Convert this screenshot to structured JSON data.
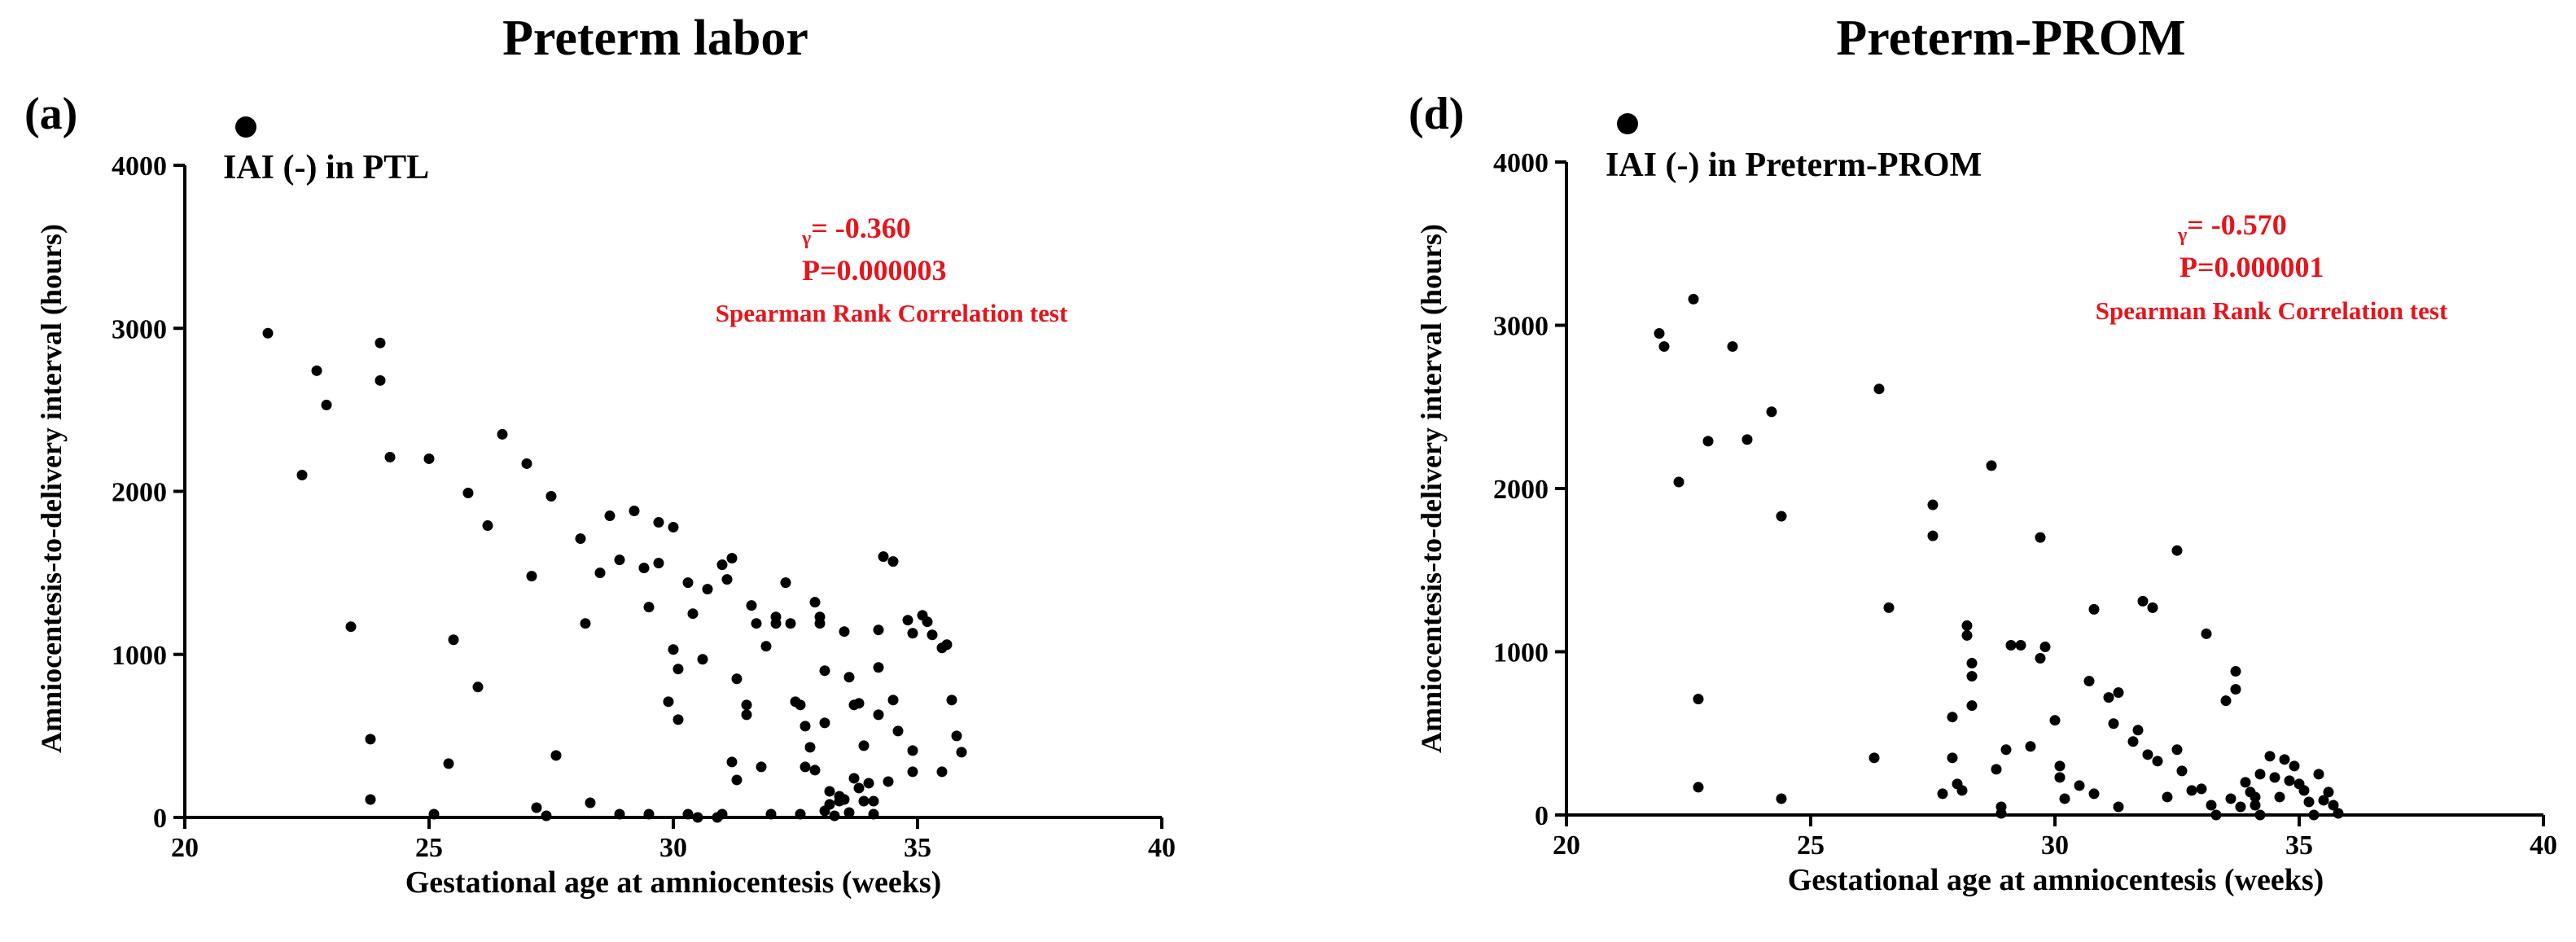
{
  "chart_data": [
    {
      "type": "scatter",
      "title": "Preterm labor",
      "panel_label": "(a)",
      "legend": {
        "label": "IAI (-) in PTL",
        "placement": "top-left"
      },
      "annotation": {
        "r_prefix": "γ",
        "r_text": "= -0.360",
        "p_text": "P=0.000003",
        "test_text": "Spearman Rank Correlation test",
        "color": "#e8141b"
      },
      "xlabel": "Gestational age at amniocentesis (weeks)",
      "ylabel": "Amniocentesis-to-delivery interval (hours)",
      "xlim": [
        20,
        40
      ],
      "ylim": [
        0,
        4000
      ],
      "xticks": [
        20,
        25,
        30,
        35,
        40
      ],
      "yticks": [
        0,
        1000,
        2000,
        3000,
        4000
      ],
      "points": [
        [
          21.7,
          2970
        ],
        [
          22.4,
          2100
        ],
        [
          22.7,
          2740
        ],
        [
          22.9,
          2530
        ],
        [
          23.4,
          1170
        ],
        [
          23.8,
          480
        ],
        [
          23.8,
          110
        ],
        [
          24.0,
          2910
        ],
        [
          24.0,
          2680
        ],
        [
          24.2,
          2210
        ],
        [
          25.0,
          2200
        ],
        [
          25.1,
          20
        ],
        [
          25.4,
          330
        ],
        [
          25.5,
          1090
        ],
        [
          25.8,
          1990
        ],
        [
          26.0,
          800
        ],
        [
          26.2,
          1790
        ],
        [
          26.5,
          2350
        ],
        [
          27.0,
          2170
        ],
        [
          27.1,
          1480
        ],
        [
          27.2,
          60
        ],
        [
          27.4,
          10
        ],
        [
          27.5,
          1970
        ],
        [
          27.6,
          380
        ],
        [
          28.1,
          1710
        ],
        [
          28.2,
          1190
        ],
        [
          28.3,
          90
        ],
        [
          28.5,
          1500
        ],
        [
          28.7,
          1850
        ],
        [
          28.9,
          1580
        ],
        [
          28.9,
          20
        ],
        [
          29.2,
          1880
        ],
        [
          29.4,
          1530
        ],
        [
          29.5,
          1290
        ],
        [
          29.5,
          20
        ],
        [
          29.7,
          1810
        ],
        [
          29.7,
          1560
        ],
        [
          29.9,
          710
        ],
        [
          30.0,
          1780
        ],
        [
          30.0,
          1030
        ],
        [
          30.1,
          910
        ],
        [
          30.1,
          600
        ],
        [
          30.3,
          1440
        ],
        [
          30.4,
          1250
        ],
        [
          30.6,
          970
        ],
        [
          30.7,
          1400
        ],
        [
          30.9,
          0
        ],
        [
          30.3,
          20
        ],
        [
          30.5,
          0
        ],
        [
          31.0,
          1550
        ],
        [
          31.1,
          1460
        ],
        [
          31.2,
          1590
        ],
        [
          31.3,
          850
        ],
        [
          31.5,
          690
        ],
        [
          31.5,
          630
        ],
        [
          31.3,
          230
        ],
        [
          31.2,
          340
        ],
        [
          31.0,
          20
        ],
        [
          31.6,
          1300
        ],
        [
          31.7,
          1190
        ],
        [
          31.9,
          1050
        ],
        [
          32.0,
          20
        ],
        [
          31.8,
          310
        ],
        [
          32.1,
          1230
        ],
        [
          32.1,
          1190
        ],
        [
          32.3,
          1440
        ],
        [
          32.4,
          1190
        ],
        [
          32.5,
          710
        ],
        [
          32.6,
          690
        ],
        [
          32.7,
          560
        ],
        [
          32.8,
          430
        ],
        [
          32.6,
          20
        ],
        [
          32.9,
          1320
        ],
        [
          33.0,
          1230
        ],
        [
          33.0,
          1190
        ],
        [
          33.1,
          900
        ],
        [
          33.1,
          580
        ],
        [
          33.3,
          10
        ],
        [
          33.1,
          40
        ],
        [
          33.5,
          1140
        ],
        [
          33.6,
          860
        ],
        [
          33.7,
          690
        ],
        [
          33.8,
          700
        ],
        [
          33.9,
          440
        ],
        [
          33.4,
          100
        ],
        [
          33.4,
          130
        ],
        [
          33.5,
          110
        ],
        [
          32.7,
          310
        ],
        [
          32.9,
          290
        ],
        [
          33.2,
          160
        ],
        [
          33.7,
          240
        ],
        [
          33.9,
          100
        ],
        [
          33.8,
          180
        ],
        [
          34.2,
          1150
        ],
        [
          34.2,
          630
        ],
        [
          34.1,
          100
        ],
        [
          34.1,
          20
        ],
        [
          34.0,
          210
        ],
        [
          33.6,
          30
        ],
        [
          33.2,
          80
        ],
        [
          34.3,
          1600
        ],
        [
          34.5,
          1570
        ],
        [
          34.2,
          920
        ],
        [
          34.5,
          720
        ],
        [
          34.6,
          530
        ],
        [
          34.8,
          1210
        ],
        [
          34.9,
          1130
        ],
        [
          34.4,
          220
        ],
        [
          34.9,
          410
        ],
        [
          34.9,
          280
        ],
        [
          35.1,
          1240
        ],
        [
          35.2,
          1200
        ],
        [
          35.3,
          1120
        ],
        [
          35.5,
          1040
        ],
        [
          35.5,
          280
        ],
        [
          35.6,
          1060
        ],
        [
          35.7,
          720
        ],
        [
          35.8,
          500
        ],
        [
          35.9,
          400
        ]
      ]
    },
    {
      "type": "scatter",
      "title": "Preterm-PROM",
      "panel_label": "(d)",
      "legend": {
        "label": "IAI (-) in Preterm-PROM",
        "placement": "top-left"
      },
      "annotation": {
        "r_prefix": "γ",
        "r_text": "= -0.570",
        "p_text": "P=0.000001",
        "test_text": "Spearman Rank Correlation test",
        "color": "#e8141b"
      },
      "xlabel": "Gestational age at amniocentesis (weeks)",
      "ylabel": "Amniocentesis-to-delivery interval (hours)",
      "xlim": [
        20,
        40
      ],
      "ylim": [
        0,
        4000
      ],
      "xticks": [
        20,
        25,
        30,
        35,
        40
      ],
      "yticks": [
        0,
        1000,
        2000,
        3000,
        4000
      ],
      "points": [
        [
          21.9,
          2950
        ],
        [
          22.0,
          2870
        ],
        [
          22.3,
          2040
        ],
        [
          22.6,
          3160
        ],
        [
          22.7,
          710
        ],
        [
          22.7,
          170
        ],
        [
          22.9,
          2290
        ],
        [
          23.4,
          2870
        ],
        [
          23.7,
          2300
        ],
        [
          24.2,
          2470
        ],
        [
          24.4,
          1830
        ],
        [
          24.4,
          100
        ],
        [
          26.3,
          350
        ],
        [
          26.4,
          2610
        ],
        [
          26.6,
          1270
        ],
        [
          27.5,
          1900
        ],
        [
          27.5,
          1710
        ],
        [
          27.7,
          130
        ],
        [
          27.9,
          600
        ],
        [
          27.9,
          350
        ],
        [
          28.0,
          190
        ],
        [
          28.1,
          150
        ],
        [
          28.2,
          1160
        ],
        [
          28.2,
          1100
        ],
        [
          28.3,
          930
        ],
        [
          28.3,
          850
        ],
        [
          28.3,
          670
        ],
        [
          28.7,
          2140
        ],
        [
          28.8,
          280
        ],
        [
          28.9,
          10
        ],
        [
          28.9,
          50
        ],
        [
          29.0,
          400
        ],
        [
          29.1,
          1040
        ],
        [
          29.3,
          1040
        ],
        [
          29.5,
          420
        ],
        [
          29.7,
          960
        ],
        [
          29.7,
          1700
        ],
        [
          29.8,
          1030
        ],
        [
          30.0,
          580
        ],
        [
          30.1,
          300
        ],
        [
          30.1,
          230
        ],
        [
          30.2,
          100
        ],
        [
          30.5,
          180
        ],
        [
          30.7,
          820
        ],
        [
          30.8,
          1260
        ],
        [
          30.8,
          130
        ],
        [
          31.1,
          720
        ],
        [
          31.2,
          560
        ],
        [
          31.3,
          750
        ],
        [
          31.3,
          50
        ],
        [
          31.6,
          450
        ],
        [
          31.7,
          520
        ],
        [
          31.8,
          1310
        ],
        [
          31.9,
          370
        ],
        [
          32.0,
          1270
        ],
        [
          32.1,
          330
        ],
        [
          32.3,
          110
        ],
        [
          32.5,
          1620
        ],
        [
          32.5,
          400
        ],
        [
          32.6,
          270
        ],
        [
          32.8,
          150
        ],
        [
          33.0,
          160
        ],
        [
          33.1,
          1110
        ],
        [
          33.2,
          60
        ],
        [
          33.3,
          0
        ],
        [
          33.5,
          700
        ],
        [
          33.6,
          100
        ],
        [
          33.7,
          880
        ],
        [
          33.7,
          770
        ],
        [
          33.8,
          50
        ],
        [
          33.9,
          200
        ],
        [
          34.0,
          140
        ],
        [
          34.1,
          110
        ],
        [
          34.1,
          60
        ],
        [
          34.2,
          250
        ],
        [
          34.2,
          0
        ],
        [
          34.4,
          360
        ],
        [
          34.5,
          230
        ],
        [
          34.6,
          110
        ],
        [
          34.7,
          340
        ],
        [
          34.8,
          210
        ],
        [
          34.9,
          300
        ],
        [
          35.0,
          190
        ],
        [
          35.1,
          150
        ],
        [
          35.2,
          80
        ],
        [
          35.3,
          0
        ],
        [
          35.4,
          250
        ],
        [
          35.5,
          90
        ],
        [
          35.6,
          140
        ],
        [
          35.7,
          60
        ],
        [
          35.8,
          10
        ]
      ]
    }
  ]
}
